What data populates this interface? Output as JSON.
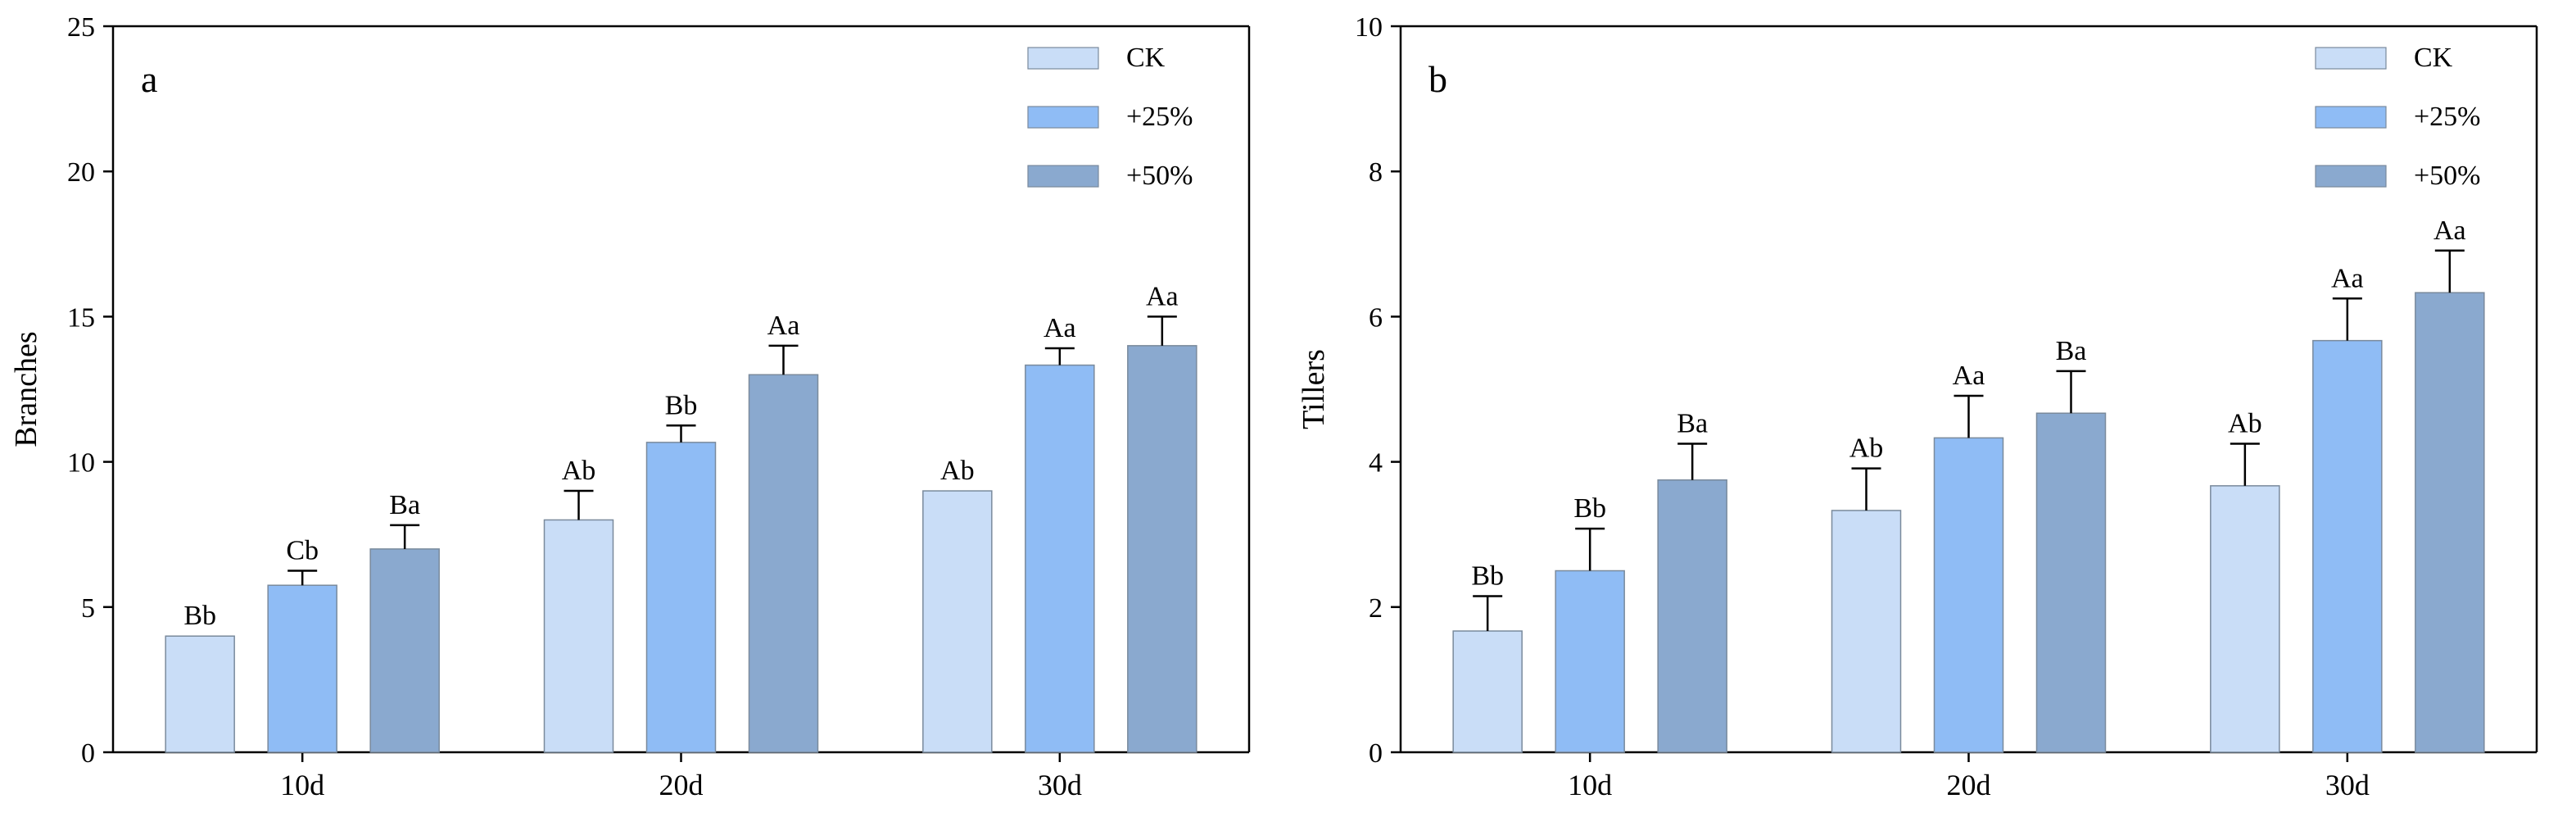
{
  "chart_data": [
    {
      "type": "bar",
      "panel_label": "a",
      "categories": [
        "10d",
        "20d",
        "30d"
      ],
      "series": [
        {
          "name": "CK",
          "color": "#c9ddf7",
          "values": [
            4,
            8,
            9
          ],
          "errors": [
            0,
            1.0,
            0
          ],
          "labels": [
            "Bb",
            "Ab",
            "Ab"
          ]
        },
        {
          "name": "+25%",
          "color": "#8fbcf5",
          "values": [
            5.75,
            10.67,
            13.33
          ],
          "errors": [
            0.5,
            0.58,
            0.58
          ],
          "labels": [
            "Cb",
            "Bb",
            "Aa"
          ]
        },
        {
          "name": "+50%",
          "color": "#8aa9cf",
          "values": [
            7,
            13,
            14
          ],
          "errors": [
            0.82,
            1.0,
            1.0
          ],
          "labels": [
            "Ba",
            "Aa",
            "Aa"
          ]
        }
      ],
      "title": "",
      "xlabel": "",
      "ylabel": "Branches",
      "ylim": [
        0,
        25
      ],
      "yticks": [
        0,
        5,
        10,
        15,
        20,
        25
      ],
      "legend": "top-right",
      "grid": false
    },
    {
      "type": "bar",
      "panel_label": "b",
      "categories": [
        "10d",
        "20d",
        "30d"
      ],
      "series": [
        {
          "name": "CK",
          "color": "#c9ddf7",
          "values": [
            1.67,
            3.33,
            3.67
          ],
          "errors": [
            0.48,
            0.58,
            0.58
          ],
          "labels": [
            "Bb",
            "Ab",
            "Ab"
          ]
        },
        {
          "name": "+25%",
          "color": "#8fbcf5",
          "values": [
            2.5,
            4.33,
            5.67
          ],
          "errors": [
            0.58,
            0.58,
            0.58
          ],
          "labels": [
            "Bb",
            "Aa",
            "Aa"
          ]
        },
        {
          "name": "+50%",
          "color": "#8aa9cf",
          "values": [
            3.75,
            4.67,
            6.33
          ],
          "errors": [
            0.5,
            0.58,
            0.58
          ],
          "labels": [
            "Ba",
            "Ba",
            "Aa"
          ]
        }
      ],
      "title": "",
      "xlabel": "",
      "ylabel": "Tillers",
      "ylim": [
        0,
        10
      ],
      "yticks": [
        0,
        2,
        4,
        6,
        8,
        10
      ],
      "legend": "top-right",
      "grid": false
    }
  ]
}
